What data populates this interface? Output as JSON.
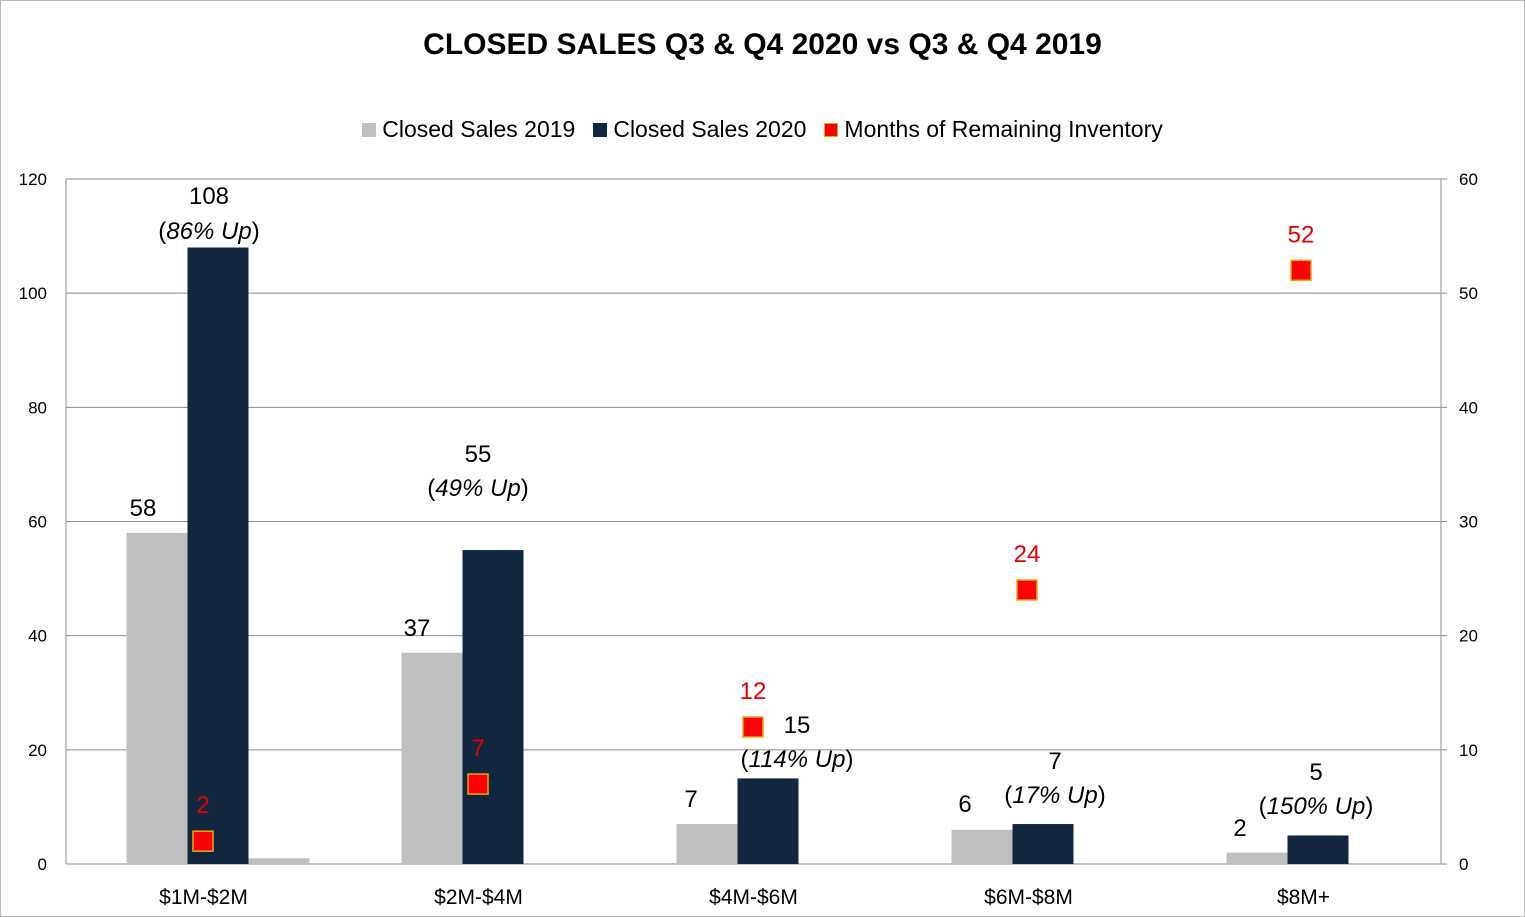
{
  "chart_data": {
    "type": "bar",
    "title": "CLOSED SALES Q3 & Q4 2020 vs Q3 & Q4 2019",
    "categories": [
      "$1M-$2M",
      "$2M-$4M",
      "$4M-$6M",
      "$6M-$8M",
      "$8M+"
    ],
    "series": [
      {
        "name": "Closed Sales 2019",
        "axis": "left",
        "color": "#bfbfbf",
        "values": [
          58,
          37,
          7,
          6,
          2
        ],
        "labels": [
          "58",
          "37",
          "7",
          "6",
          "2"
        ]
      },
      {
        "name": "Closed Sales 2020",
        "axis": "left",
        "color": "#13263f",
        "values": [
          108,
          55,
          15,
          7,
          5
        ],
        "labels": [
          "108",
          "55",
          "15",
          "7",
          "5"
        ],
        "pct_labels": [
          "86% Up",
          "49% Up",
          "114% Up",
          "17% Up",
          "150% Up"
        ]
      },
      {
        "name": "Months of Remaining Inventory",
        "axis": "right",
        "type": "scatter",
        "color": "#ff0000",
        "values": [
          2,
          7,
          12,
          24,
          52
        ],
        "labels": [
          "2",
          "7",
          "12",
          "24",
          "52"
        ]
      }
    ],
    "extra_bar": {
      "category": "$1M-$2M",
      "value": 1,
      "color": "#bfbfbf"
    },
    "left_axis": {
      "ylim": [
        0,
        120
      ],
      "ticks": [
        "0",
        "20",
        "40",
        "60",
        "80",
        "100",
        "120"
      ]
    },
    "right_axis": {
      "ylim": [
        0,
        60
      ],
      "ticks": [
        "0",
        "10",
        "20",
        "30",
        "40",
        "50",
        "60"
      ]
    },
    "grid": true,
    "legend_position": "top"
  }
}
